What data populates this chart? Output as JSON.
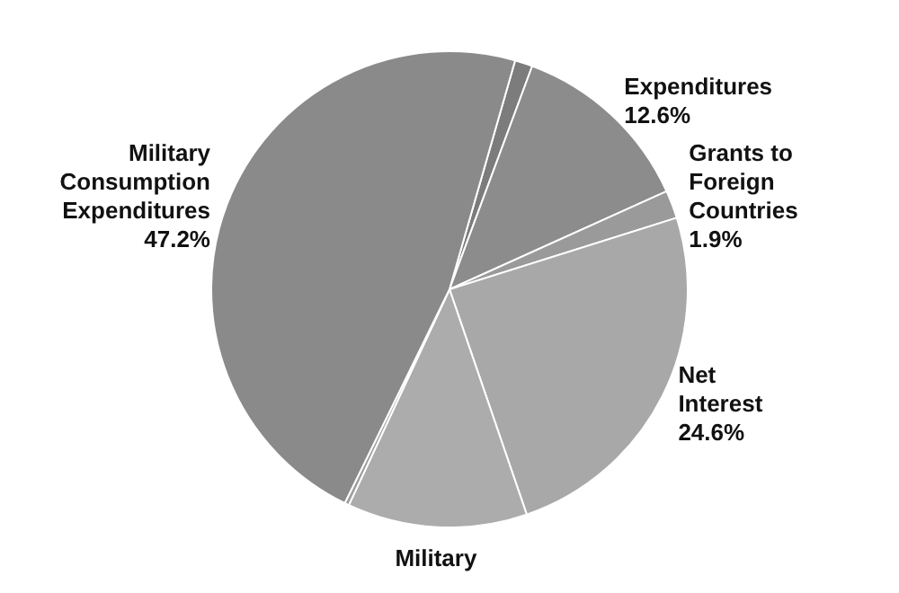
{
  "chart_data": {
    "type": "pie",
    "categories": [
      null,
      "Expenditures",
      "Grants to Foreign Countries",
      "Net Interest",
      "Military",
      null,
      "Military Consumption Expenditures"
    ],
    "values": [
      1.2,
      12.6,
      1.9,
      24.6,
      12.2,
      0.3,
      47.2
    ],
    "value_labels": [
      null,
      "12.6%",
      "1.9%",
      "24.6%",
      null,
      null,
      "47.2%"
    ],
    "colors": [
      "#7c7c7c",
      "#8c8c8c",
      "#9a9a9a",
      "#a8a8a8",
      "#acacac",
      "#9c9c9c",
      "#8a8a8a"
    ]
  }
}
